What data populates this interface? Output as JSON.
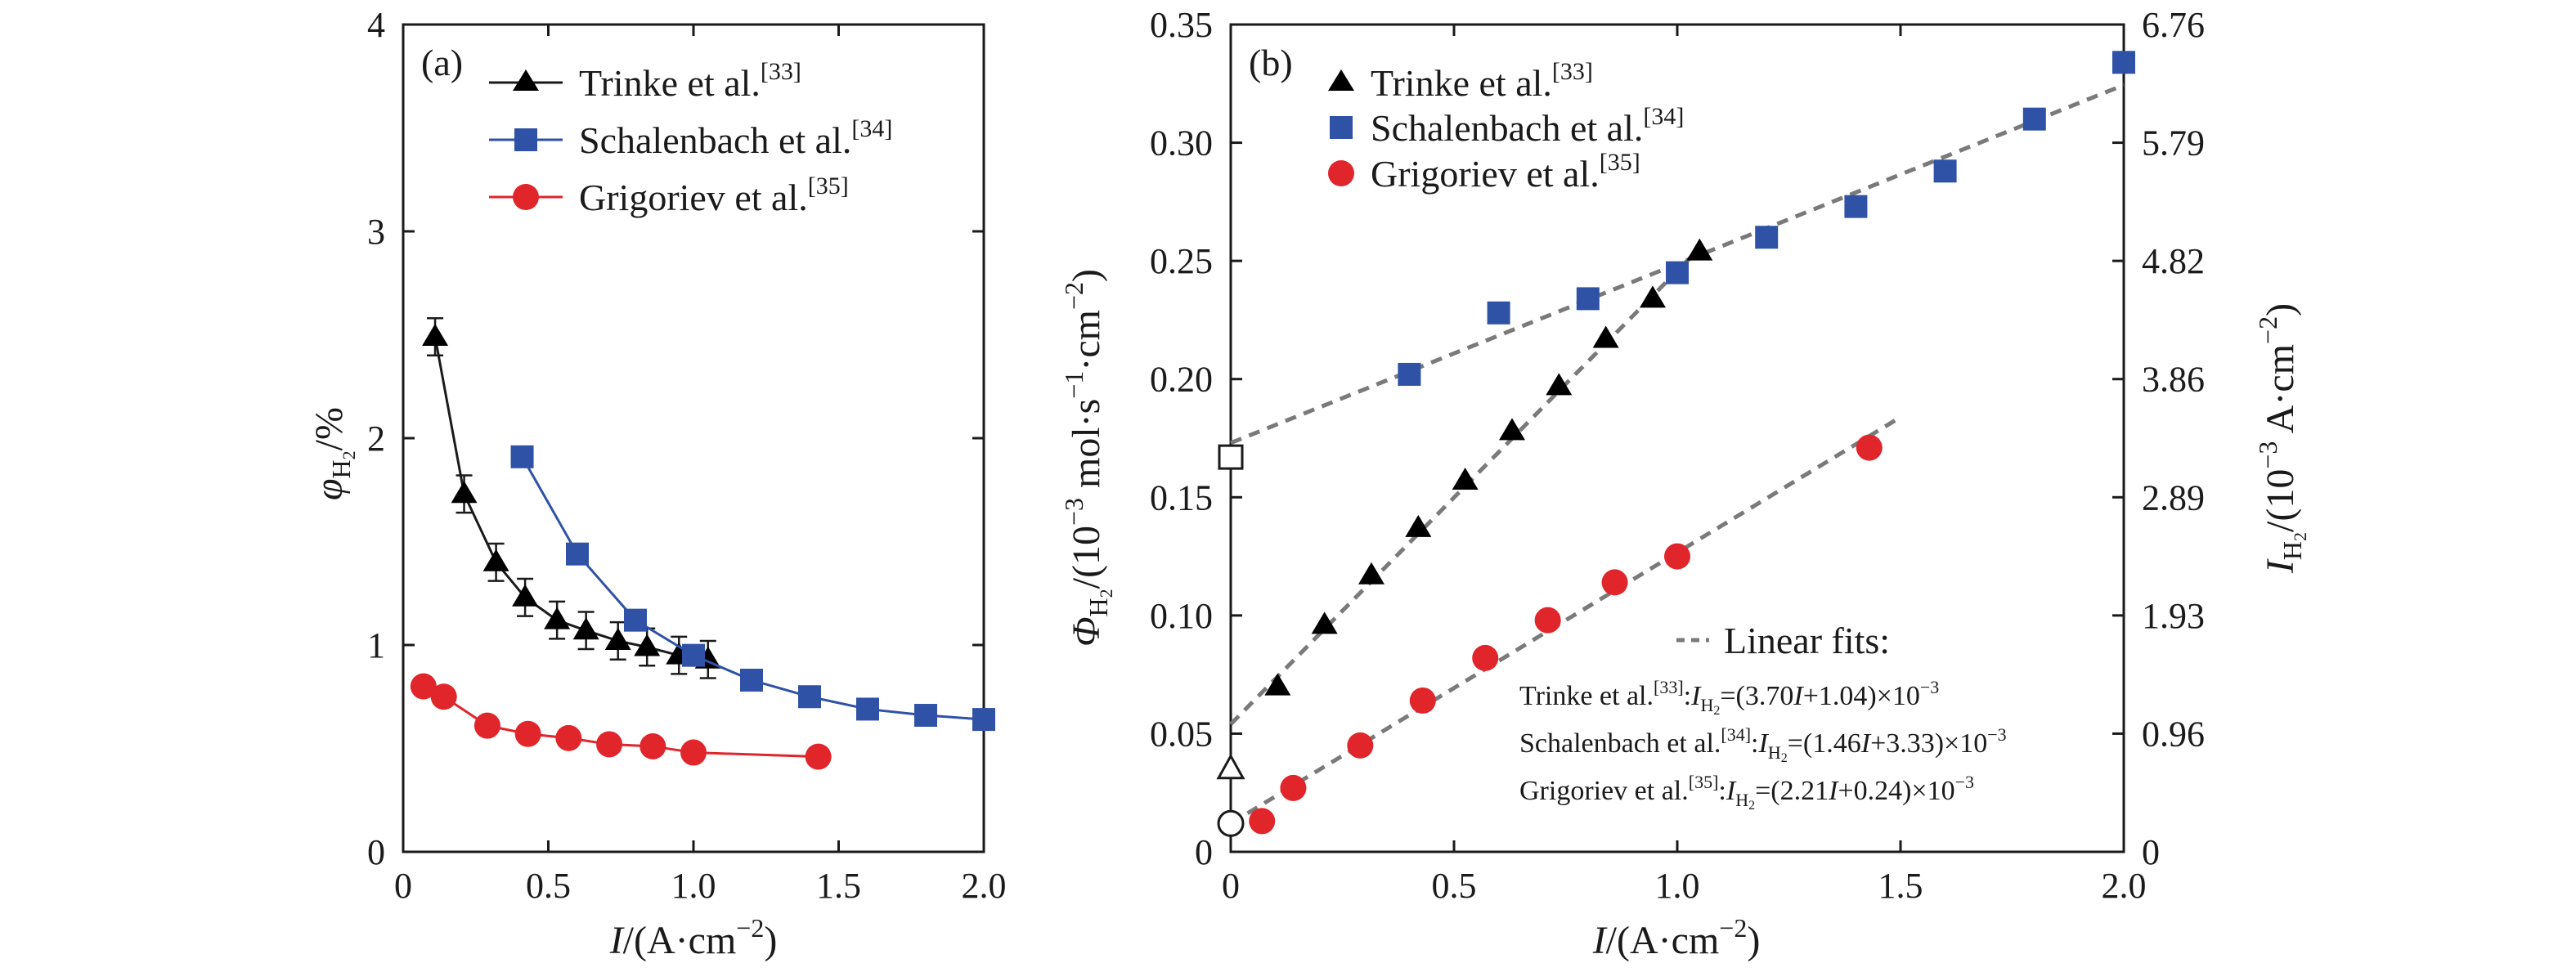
{
  "chart_data": [
    {
      "panel": "(a)",
      "type": "line",
      "title": "",
      "xlabel": {
        "symbol": "I",
        "unit": "/(A·cm",
        "exp": "−2",
        "close": ")"
      },
      "ylabel": {
        "symbol": "φ",
        "sub": "H",
        "subsub": "2",
        "unit": "/%"
      },
      "xlim": [
        0,
        2.0
      ],
      "ylim": [
        0,
        4
      ],
      "x_ticks": [
        0,
        0.5,
        1.0,
        1.5,
        2.0
      ],
      "x_tick_labels": [
        "0",
        "0.5",
        "1.0",
        "1.5",
        "2.0"
      ],
      "y_ticks": [
        0,
        1,
        2,
        3,
        4
      ],
      "y_tick_labels": [
        "0",
        "1",
        "2",
        "3",
        "4"
      ],
      "legend_position": "top-right",
      "series": [
        {
          "name": "Trinke et al.",
          "ref": "[33]",
          "marker": "triangle",
          "color": "#000000",
          "line_color": "#1a1a1a",
          "x": [
            0.11,
            0.21,
            0.32,
            0.42,
            0.53,
            0.63,
            0.74,
            0.84,
            0.95,
            1.05
          ],
          "y": [
            2.49,
            1.73,
            1.4,
            1.23,
            1.12,
            1.07,
            1.02,
            0.99,
            0.95,
            0.93
          ],
          "err": [
            0.09,
            0.09,
            0.09,
            0.09,
            0.09,
            0.09,
            0.09,
            0.09,
            0.09,
            0.09
          ]
        },
        {
          "name": "Schalenbach et al.",
          "ref": "[34]",
          "marker": "square",
          "color": "#2f52a6",
          "line_color": "#2f52a6",
          "x": [
            0.41,
            0.6,
            0.8,
            1.0,
            1.2,
            1.4,
            1.6,
            1.8,
            2.0
          ],
          "y": [
            1.91,
            1.44,
            1.12,
            0.95,
            0.83,
            0.75,
            0.69,
            0.66,
            0.64
          ]
        },
        {
          "name": "Grigoriev et al.",
          "ref": "[35]",
          "marker": "circle",
          "color": "#e0252b",
          "line_color": "#e0252b",
          "x": [
            0.07,
            0.14,
            0.29,
            0.43,
            0.57,
            0.71,
            0.86,
            1.0,
            1.43
          ],
          "y": [
            0.8,
            0.75,
            0.61,
            0.57,
            0.55,
            0.52,
            0.51,
            0.48,
            0.46
          ]
        }
      ]
    },
    {
      "panel": "(b)",
      "type": "scatter",
      "title": "",
      "xlabel": {
        "symbol": "I",
        "unit": "/(A·cm",
        "exp": "−2",
        "close": ")"
      },
      "ylabel": {
        "symbol": "Φ",
        "sub": "H",
        "subsub": "2",
        "unit": "/(10",
        "exp1": "−3",
        "mid": " mol·s",
        "exp2": "−1",
        "mid2": "·cm",
        "exp3": "−2",
        "close": ")"
      },
      "ylabel_right": {
        "symbol": "I",
        "sub": "H",
        "subsub": "2",
        "unit": "/(10",
        "exp1": "−3",
        "mid": " A·cm",
        "exp2": "−2",
        "close": ")"
      },
      "xlim": [
        0,
        2.0
      ],
      "ylim": [
        0,
        0.35
      ],
      "x_ticks": [
        0,
        0.5,
        1.0,
        1.5,
        2.0
      ],
      "x_tick_labels": [
        "0",
        "0.5",
        "1.0",
        "1.5",
        "2.0"
      ],
      "y_ticks": [
        0,
        0.05,
        0.1,
        0.15,
        0.2,
        0.25,
        0.3,
        0.35
      ],
      "y_tick_labels": [
        "0",
        "0.05",
        "0.10",
        "0.15",
        "0.20",
        "0.25",
        "0.30",
        "0.35"
      ],
      "y_right_tick_labels": [
        "0",
        "0.96",
        "1.93",
        "2.89",
        "3.86",
        "4.82",
        "5.79",
        "6.76"
      ],
      "legend_position": "top-left",
      "series": [
        {
          "name": "Trinke et al.",
          "ref": "[33]",
          "marker": "triangle",
          "color": "#000000",
          "x": [
            0.105,
            0.21,
            0.315,
            0.42,
            0.525,
            0.63,
            0.735,
            0.84,
            0.945,
            1.05
          ],
          "y": [
            0.07,
            0.096,
            0.117,
            0.137,
            0.157,
            0.178,
            0.197,
            0.217,
            0.234,
            0.254
          ]
        },
        {
          "name": "Schalenbach et al.",
          "ref": "[34]",
          "marker": "square",
          "color": "#2f52a6",
          "x": [
            0.4,
            0.6,
            0.8,
            1.0,
            1.2,
            1.4,
            1.6,
            1.8,
            2.0
          ],
          "y": [
            0.202,
            0.228,
            0.234,
            0.245,
            0.26,
            0.273,
            0.288,
            0.31,
            0.334
          ]
        },
        {
          "name": "Grigoriev et al.",
          "ref": "[35]",
          "marker": "circle",
          "color": "#e0252b",
          "x": [
            0.07,
            0.14,
            0.29,
            0.43,
            0.57,
            0.71,
            0.86,
            1.0,
            1.43
          ],
          "y": [
            0.013,
            0.027,
            0.045,
            0.064,
            0.082,
            0.098,
            0.114,
            0.125,
            0.171
          ]
        }
      ],
      "intercepts": [
        {
          "series": "Trinke et al.",
          "marker": "triangle-open",
          "x": 0,
          "y": 0.035
        },
        {
          "series": "Schalenbach et al.",
          "marker": "square-open",
          "x": 0,
          "y": 0.167
        },
        {
          "series": "Grigoriev et al.",
          "marker": "circle-open",
          "x": 0,
          "y": 0.012
        }
      ],
      "fits": [
        {
          "series": "Trinke et al.",
          "slope": 0.1918,
          "intercept": 0.054,
          "x_range": [
            0,
            1.05
          ]
        },
        {
          "series": "Schalenbach et al.",
          "slope": 0.0757,
          "intercept": 0.173,
          "x_range": [
            0,
            2.0
          ]
        },
        {
          "series": "Grigoriev et al.",
          "slope": 0.1146,
          "intercept": 0.012,
          "x_range": [
            0,
            1.5
          ]
        }
      ],
      "fit_legend": {
        "title": "Linear fits:",
        "entries": [
          {
            "name": "Trinke et al.",
            "ref": "[33]",
            "expr_pre": "(3.70",
            "expr_mid": "+1.04)×10",
            "exp": "−3"
          },
          {
            "name": "Schalenbach et al.",
            "ref": "[34]",
            "expr_pre": "(1.46",
            "expr_mid": "+3.33)×10",
            "exp": "−3"
          },
          {
            "name": "Grigoriev et al.",
            "ref": "[35]",
            "expr_pre": "(2.21",
            "expr_mid": "+0.24)×10",
            "exp": "−3"
          }
        ],
        "lhs_symbol": "I",
        "lhs_sub": "H",
        "lhs_subsub": "2",
        "var": "I",
        "colon": ":",
        "equals": "="
      }
    }
  ]
}
